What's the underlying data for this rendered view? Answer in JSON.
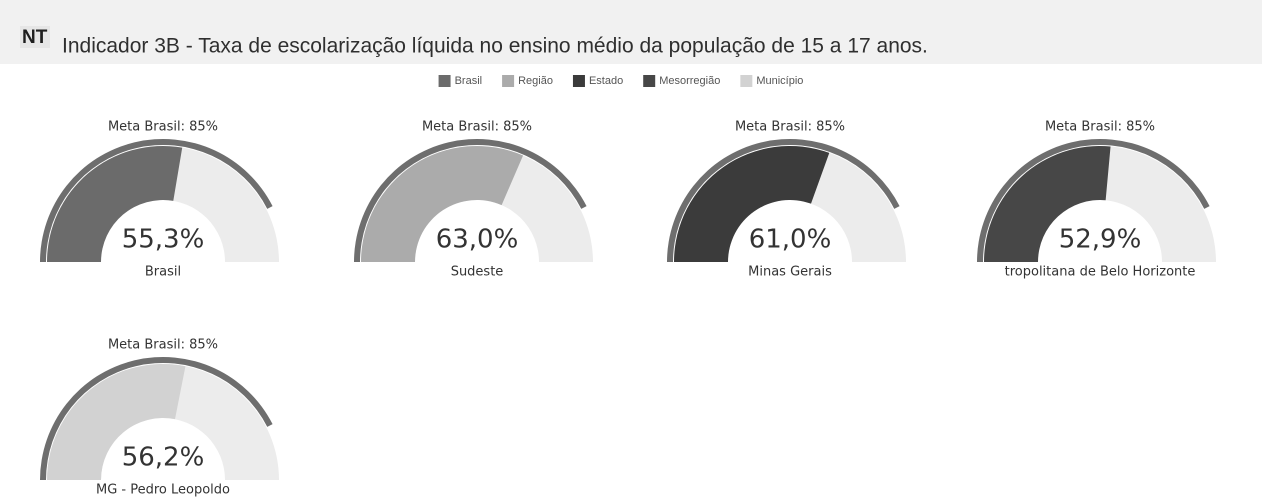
{
  "header": {
    "logo": "NT",
    "title": "Indicador 3B - Taxa de escolarização líquida no ensino médio da população de 15 a 17 anos."
  },
  "legend": [
    {
      "name": "Brasil",
      "color": "#6b6b6b"
    },
    {
      "name": "Região",
      "color": "#ababab"
    },
    {
      "name": "Estado",
      "color": "#3b3b3b"
    },
    {
      "name": "Mesorregião",
      "color": "#474747"
    },
    {
      "name": "Município",
      "color": "#d2d2d2"
    }
  ],
  "chart_data": [
    {
      "type": "gauge",
      "subtitle": "Meta Brasil: 85%",
      "target": 85,
      "value": 55.3,
      "value_label": "55,3%",
      "label": "Brasil",
      "color": "#6b6b6b",
      "ylim": [
        0,
        100
      ]
    },
    {
      "type": "gauge",
      "subtitle": "Meta Brasil: 85%",
      "target": 85,
      "value": 63.0,
      "value_label": "63,0%",
      "label": "Sudeste",
      "color": "#ababab",
      "ylim": [
        0,
        100
      ]
    },
    {
      "type": "gauge",
      "subtitle": "Meta Brasil: 85%",
      "target": 85,
      "value": 61.0,
      "value_label": "61,0%",
      "label": "Minas Gerais",
      "color": "#3b3b3b",
      "ylim": [
        0,
        100
      ]
    },
    {
      "type": "gauge",
      "subtitle": "Meta Brasil: 85%",
      "target": 85,
      "value": 52.9,
      "value_label": "52,9%",
      "label": "tropolitana de Belo Horizonte",
      "color": "#474747",
      "ylim": [
        0,
        100
      ]
    },
    {
      "type": "gauge",
      "subtitle": "Meta Brasil: 85%",
      "target": 85,
      "value": 56.2,
      "value_label": "56,2%",
      "label": "MG - Pedro Leopoldo",
      "color": "#d2d2d2",
      "ylim": [
        0,
        100
      ]
    }
  ]
}
